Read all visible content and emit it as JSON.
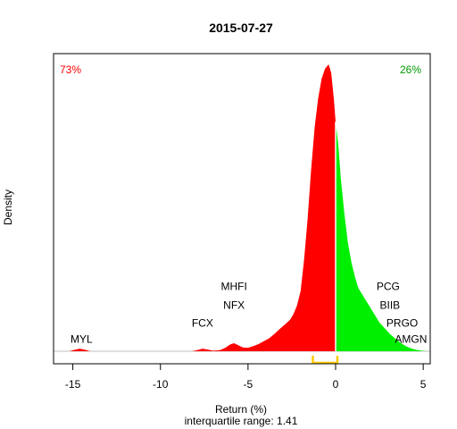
{
  "chart_data": {
    "type": "area",
    "title": "2015-07-27",
    "xlabel": "Return (%)",
    "subtitle": "interquartile range: 1.41",
    "ylabel": "Density",
    "xlim": [
      -16.1,
      5.4
    ],
    "ylim": [
      0,
      1
    ],
    "x_ticks": [
      -15,
      -10,
      -5,
      0,
      5
    ],
    "x_tick_labels": [
      "-15",
      "-10",
      "-5",
      "0",
      "5"
    ],
    "pct_negative": "73%",
    "pct_positive": "26%",
    "colors": {
      "negative": "#ff0000",
      "positive": "#00ee00",
      "bracket": "#ffcc00",
      "pct_negative": "#ff0000",
      "pct_positive": "#009900"
    },
    "iqr_bracket": [
      -1.3,
      0.1
    ],
    "density": [
      [
        -15.2,
        0.0
      ],
      [
        -14.9,
        0.005
      ],
      [
        -14.6,
        0.009
      ],
      [
        -14.3,
        0.005
      ],
      [
        -14.0,
        0.0
      ],
      [
        -8.2,
        0.0
      ],
      [
        -7.9,
        0.004
      ],
      [
        -7.6,
        0.009
      ],
      [
        -7.3,
        0.006
      ],
      [
        -7.0,
        0.002
      ],
      [
        -6.6,
        0.004
      ],
      [
        -6.3,
        0.012
      ],
      [
        -6.0,
        0.024
      ],
      [
        -5.8,
        0.028
      ],
      [
        -5.6,
        0.022
      ],
      [
        -5.3,
        0.013
      ],
      [
        -5.0,
        0.012
      ],
      [
        -4.7,
        0.018
      ],
      [
        -4.4,
        0.025
      ],
      [
        -4.1,
        0.035
      ],
      [
        -3.8,
        0.045
      ],
      [
        -3.5,
        0.06
      ],
      [
        -3.2,
        0.077
      ],
      [
        -2.9,
        0.093
      ],
      [
        -2.6,
        0.11
      ],
      [
        -2.4,
        0.13
      ],
      [
        -2.2,
        0.16
      ],
      [
        -2.0,
        0.21
      ],
      [
        -1.8,
        0.32
      ],
      [
        -1.6,
        0.46
      ],
      [
        -1.4,
        0.63
      ],
      [
        -1.2,
        0.78
      ],
      [
        -1.0,
        0.88
      ],
      [
        -0.8,
        0.95
      ],
      [
        -0.6,
        0.985
      ],
      [
        -0.4,
        1.0
      ],
      [
        -0.25,
        0.97
      ],
      [
        -0.1,
        0.88
      ],
      [
        0.0,
        0.8
      ],
      [
        0.15,
        0.72
      ],
      [
        0.3,
        0.6
      ],
      [
        0.5,
        0.48
      ],
      [
        0.7,
        0.38
      ],
      [
        0.9,
        0.31
      ],
      [
        1.1,
        0.26
      ],
      [
        1.3,
        0.22
      ],
      [
        1.6,
        0.19
      ],
      [
        1.9,
        0.16
      ],
      [
        2.2,
        0.13
      ],
      [
        2.5,
        0.1
      ],
      [
        2.8,
        0.08
      ],
      [
        3.1,
        0.06
      ],
      [
        3.4,
        0.045
      ],
      [
        3.7,
        0.03
      ],
      [
        4.0,
        0.018
      ],
      [
        4.3,
        0.01
      ],
      [
        4.6,
        0.005
      ],
      [
        4.9,
        0.002
      ],
      [
        5.2,
        0.0
      ]
    ],
    "annotations": [
      {
        "label": "MYL",
        "x": -14.5,
        "y": 0.03
      },
      {
        "label": "FCX",
        "x": -7.6,
        "y": 0.085
      },
      {
        "label": "NFX",
        "x": -5.8,
        "y": 0.148
      },
      {
        "label": "MHFI",
        "x": -5.8,
        "y": 0.213
      },
      {
        "label": "PCG",
        "x": 3.0,
        "y": 0.213
      },
      {
        "label": "BIIB",
        "x": 3.1,
        "y": 0.148
      },
      {
        "label": "PRGO",
        "x": 3.8,
        "y": 0.085
      },
      {
        "label": "AMGN",
        "x": 4.3,
        "y": 0.03
      }
    ]
  }
}
